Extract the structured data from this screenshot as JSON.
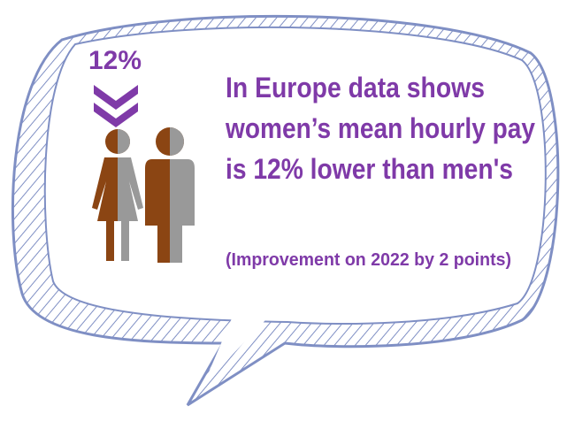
{
  "stat": "12%",
  "headline": [
    "In Europe data shows",
    "women’s mean hourly pay",
    "is 12% lower than men's"
  ],
  "note": "(Improvement on 2022 by 2 points)"
}
